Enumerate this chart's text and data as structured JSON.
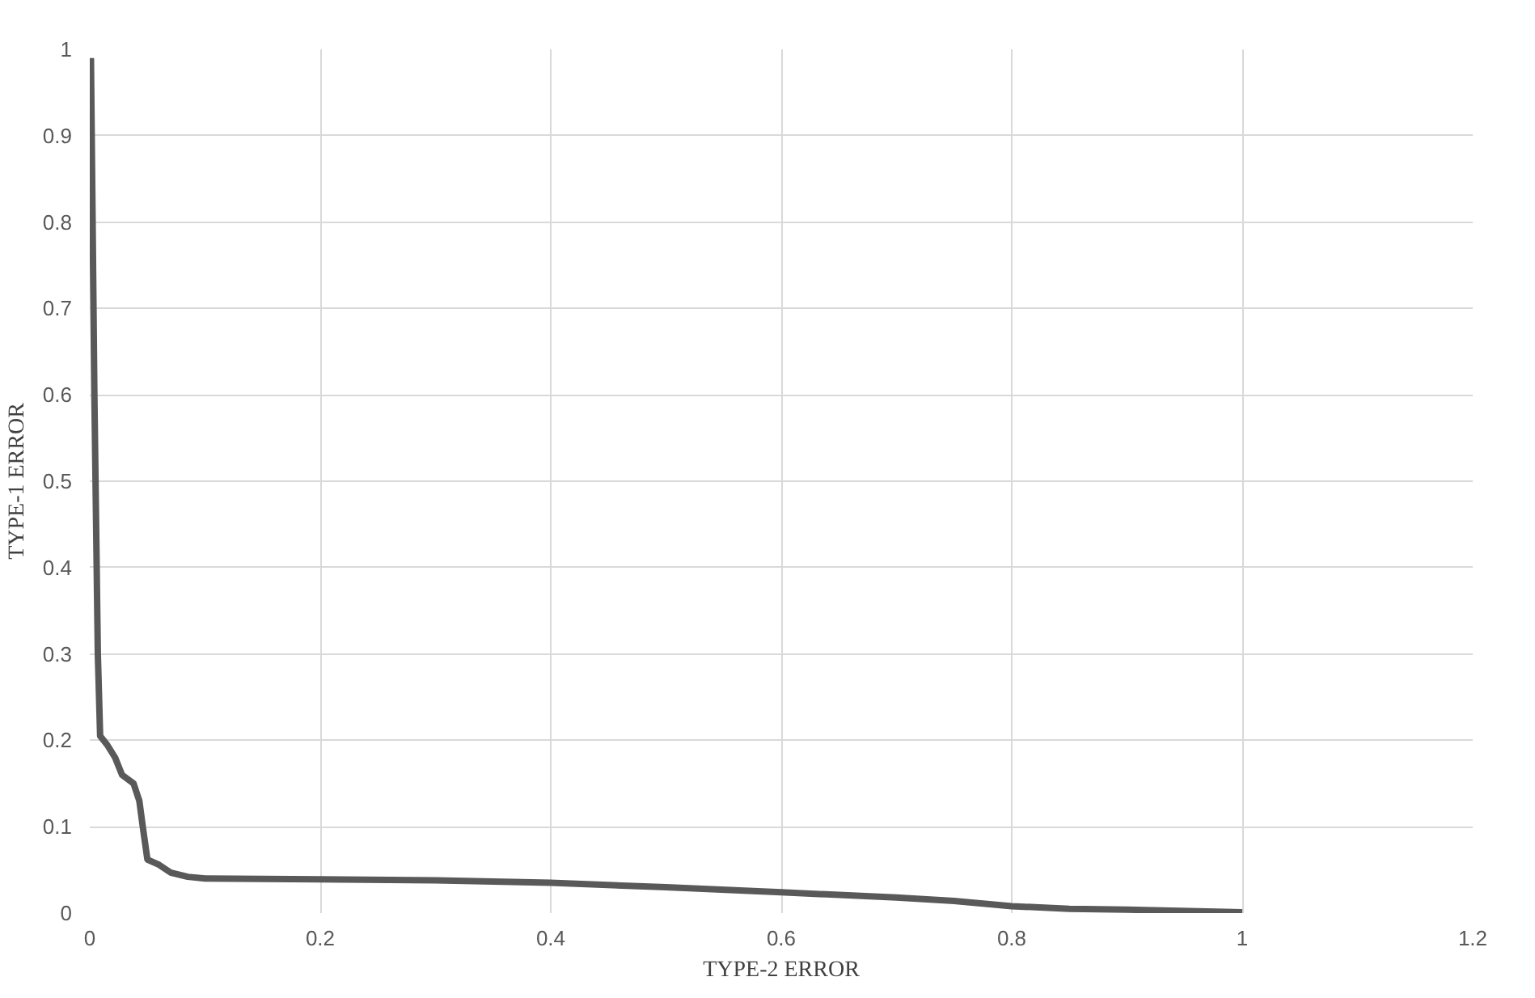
{
  "chart_data": {
    "type": "line",
    "xlabel": "TYPE-2 ERROR",
    "ylabel": "TYPE-1 ERROR",
    "x": [
      0.001,
      0.004,
      0.007,
      0.009,
      0.015,
      0.022,
      0.028,
      0.038,
      0.043,
      0.046,
      0.05,
      0.06,
      0.07,
      0.085,
      0.1,
      0.2,
      0.3,
      0.4,
      0.5,
      0.6,
      0.7,
      0.75,
      0.8,
      0.85,
      0.9,
      1.0
    ],
    "series": [
      {
        "color": "#595959",
        "values": [
          0.99,
          0.6,
          0.3,
          0.205,
          0.195,
          0.18,
          0.16,
          0.15,
          0.13,
          0.1,
          0.062,
          0.056,
          0.047,
          0.042,
          0.04,
          0.039,
          0.038,
          0.035,
          0.03,
          0.024,
          0.018,
          0.014,
          0.008,
          0.005,
          0.004,
          0.001
        ]
      }
    ],
    "xlim": [
      0,
      1.2
    ],
    "ylim": [
      0,
      1
    ],
    "xticks": [
      0,
      0.2,
      0.4,
      0.6,
      0.8,
      1,
      1.2
    ],
    "yticks": [
      0,
      0.1,
      0.2,
      0.3,
      0.4,
      0.5,
      0.6,
      0.7,
      0.8,
      0.9,
      1
    ],
    "grid": true,
    "marker": "none",
    "line_style": "solid"
  }
}
